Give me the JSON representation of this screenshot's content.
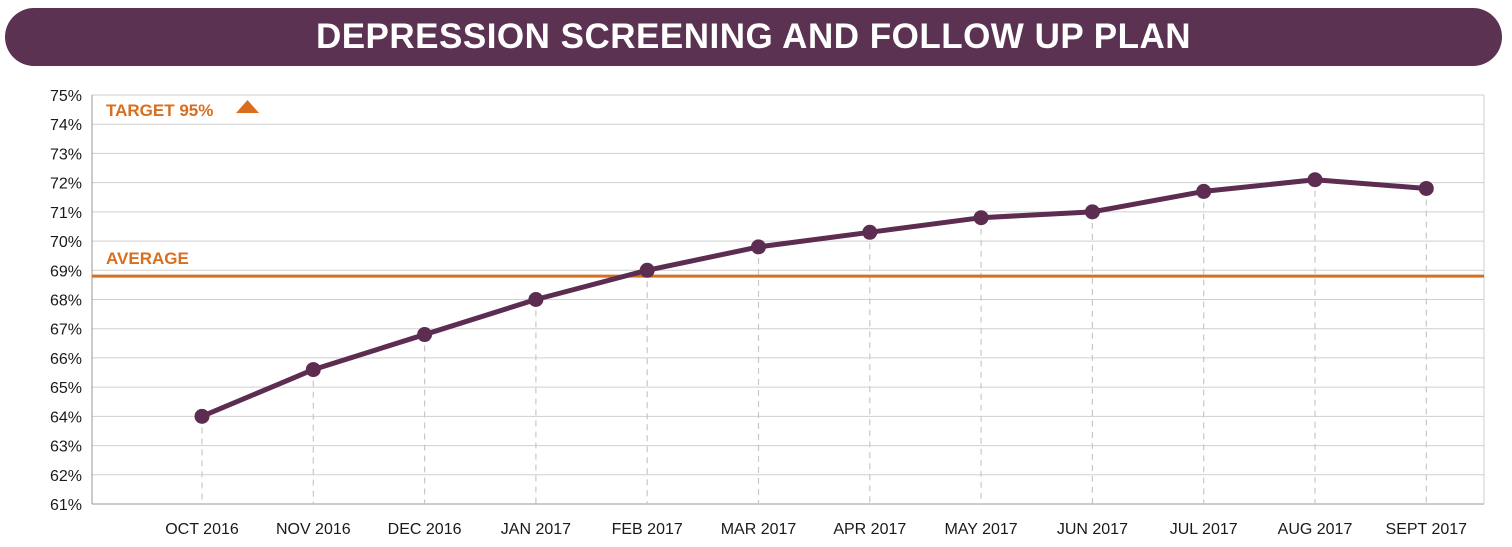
{
  "colors": {
    "banner": "#5c3252",
    "series": "#5c2d50",
    "reference": "#d96e1e",
    "grid": "#cfcfcf",
    "axis": "#9a9a9a",
    "drop_line": "#c8c8c8"
  },
  "chart_data": {
    "type": "line",
    "title": "DEPRESSION SCREENING AND FOLLOW UP PLAN",
    "xlabel": "",
    "ylabel": "",
    "categories": [
      "OCT 2016",
      "NOV 2016",
      "DEC 2016",
      "JAN 2017",
      "FEB 2017",
      "MAR 2017",
      "APR 2017",
      "MAY 2017",
      "JUN 2017",
      "JUL 2017",
      "AUG 2017",
      "SEPT 2017"
    ],
    "series": [
      {
        "values": [
          64.0,
          65.6,
          66.8,
          68.0,
          69.0,
          69.8,
          70.3,
          70.8,
          71.0,
          71.7,
          72.1,
          71.8
        ]
      }
    ],
    "ylim": [
      61,
      75
    ],
    "yticks": [
      "61%",
      "62%",
      "63%",
      "64%",
      "65%",
      "66%",
      "67%",
      "68%",
      "69%",
      "70%",
      "71%",
      "72%",
      "73%",
      "74%",
      "75%"
    ],
    "grid": true,
    "reference_lines": [
      {
        "label": "AVERAGE",
        "value": 68.8
      }
    ],
    "annotations": [
      {
        "label": "TARGET 95%",
        "icon": "triangle-up-icon"
      }
    ]
  }
}
